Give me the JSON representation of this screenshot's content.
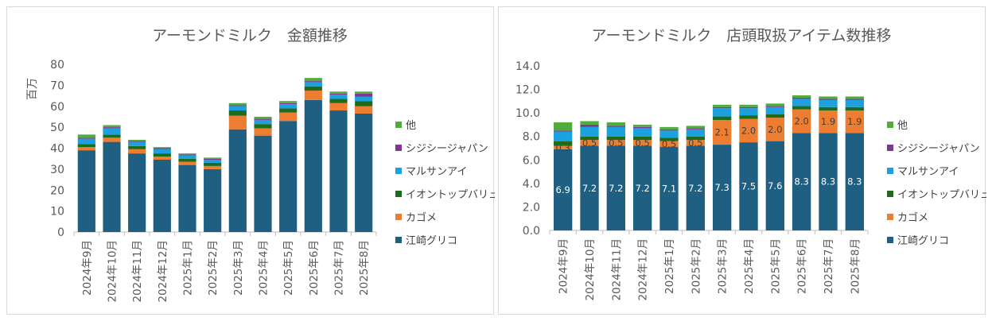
{
  "colors": {
    "ezaki": "#1F5F82",
    "kagome": "#ED7D31",
    "aeon": "#1E6B1E",
    "marusan": "#1BA1DD",
    "jiji": "#7E3794",
    "other": "#4EAD3B"
  },
  "chart_data": [
    {
      "type": "bar",
      "stacked": true,
      "title": "アーモンドミルク　金額推移",
      "ylabel": "百万",
      "ylim": [
        0,
        80
      ],
      "yticks": [
        0,
        10,
        20,
        30,
        40,
        50,
        60,
        70,
        80
      ],
      "grid": false,
      "legend_position": "right",
      "categories": [
        "2024年9月",
        "2024年10月",
        "2024年11月",
        "2024年12月",
        "2025年1月",
        "2025年2月",
        "2025年3月",
        "2025年4月",
        "2025年5月",
        "2025年6月",
        "2025年7月",
        "2025年8月"
      ],
      "series": [
        {
          "name": "江崎グリコ",
          "color_key": "ezaki",
          "values": [
            39,
            43,
            37.5,
            34.5,
            32,
            30,
            49,
            46,
            53,
            63,
            58,
            56.5
          ]
        },
        {
          "name": "カゴメ",
          "color_key": "kagome",
          "values": [
            1.5,
            2,
            2,
            1.5,
            1.5,
            1.5,
            6.5,
            3.5,
            4,
            4.5,
            3.5,
            3.5
          ]
        },
        {
          "name": "イオントップバリュ",
          "color_key": "aeon",
          "values": [
            1.5,
            1.5,
            1.5,
            1.5,
            1.5,
            1.5,
            2.5,
            2,
            2,
            2,
            2,
            2.5
          ]
        },
        {
          "name": "マルサンアイ",
          "color_key": "marusan",
          "values": [
            2.5,
            3,
            2,
            2,
            1.5,
            1.5,
            2,
            2,
            2,
            2,
            2,
            2
          ]
        },
        {
          "name": "シジシージャパン",
          "color_key": "jiji",
          "values": [
            0.5,
            0.5,
            0.5,
            0.5,
            0.5,
            0.5,
            0.5,
            0.5,
            0.5,
            0.5,
            0.5,
            1.5
          ]
        },
        {
          "name": "他",
          "color_key": "other",
          "values": [
            1.5,
            1,
            0.5,
            0.5,
            0.5,
            0.5,
            1,
            1,
            1,
            1.5,
            1,
            1
          ]
        }
      ],
      "data_labels": false
    },
    {
      "type": "bar",
      "stacked": true,
      "title": "アーモンドミルク　店頭取扱アイテム数推移",
      "ylim": [
        0,
        14
      ],
      "yticks": [
        "0.0",
        "2.0",
        "4.0",
        "6.0",
        "8.0",
        "10.0",
        "12.0",
        "14.0"
      ],
      "grid": false,
      "legend_position": "right",
      "categories": [
        "2024年9月",
        "2024年10月",
        "2024年11月",
        "2024年12月",
        "2025年1月",
        "2025年2月",
        "2025年3月",
        "2025年4月",
        "2025年5月",
        "2025年6月",
        "2025年7月",
        "2025年8月"
      ],
      "series": [
        {
          "name": "江崎グリコ",
          "color_key": "ezaki",
          "values": [
            6.9,
            7.2,
            7.2,
            7.2,
            7.1,
            7.2,
            7.3,
            7.5,
            7.6,
            8.3,
            8.3,
            8.3
          ],
          "labels": [
            "6.9",
            "7.2",
            "7.2",
            "7.2",
            "7.1",
            "7.2",
            "7.3",
            "7.5",
            "7.6",
            "8.3",
            "8.3",
            "8.3"
          ]
        },
        {
          "name": "カゴメ",
          "color_key": "kagome",
          "values": [
            0.3,
            0.5,
            0.5,
            0.5,
            0.5,
            0.5,
            2.1,
            2.0,
            2.0,
            2.0,
            1.9,
            1.9
          ],
          "labels": [
            "0.3",
            "0.5",
            "0.5",
            "0.5",
            "0.5",
            "0.5",
            "2.1",
            "2.0",
            "2.0",
            "2.0",
            "1.9",
            "1.9"
          ]
        },
        {
          "name": "イオントップバリュ",
          "color_key": "aeon",
          "values": [
            0.4,
            0.3,
            0.3,
            0.3,
            0.3,
            0.3,
            0.3,
            0.3,
            0.3,
            0.3,
            0.3,
            0.3
          ]
        },
        {
          "name": "マルサンアイ",
          "color_key": "marusan",
          "values": [
            0.8,
            0.8,
            0.8,
            0.7,
            0.6,
            0.6,
            0.7,
            0.6,
            0.6,
            0.6,
            0.6,
            0.6
          ]
        },
        {
          "name": "シジシージャパン",
          "color_key": "jiji",
          "values": [
            0.1,
            0.2,
            0.1,
            0.1,
            0.1,
            0.1,
            0.1,
            0.1,
            0.1,
            0.1,
            0.1,
            0.1
          ]
        },
        {
          "name": "他",
          "color_key": "other",
          "values": [
            0.7,
            0.3,
            0.3,
            0.2,
            0.2,
            0.2,
            0.2,
            0.2,
            0.2,
            0.2,
            0.2,
            0.2
          ]
        }
      ],
      "data_labels": true
    }
  ]
}
